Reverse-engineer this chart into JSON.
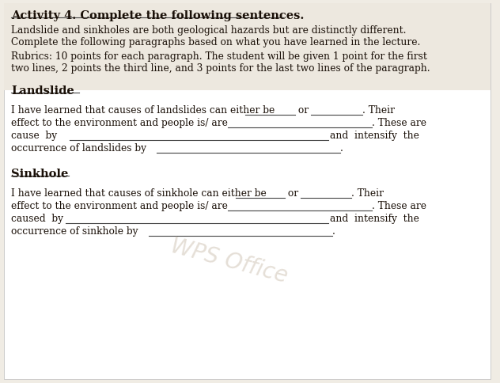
{
  "bg_color": "#f0ece4",
  "content_bg": "#ffffff",
  "text_color": "#1a1008",
  "line_color": "#444444",
  "title": "Activity 4. Complete the following sentences.",
  "intro_line1": "Landslide and sinkholes are both geological hazards but are distinctly different.",
  "intro_line2": "Complete the following paragraphs based on what you have learned in the lecture.",
  "rubrics_line1": "Rubrics: 10 points for each paragraph. The student will be given 1 point for the first",
  "rubrics_line2": "two lines, 2 points the third line, and 3 points for the last two lines of the paragraph.",
  "section1_header": "Landslide",
  "s1_l1_pre": "I have learned that causes of landslides can either be ",
  "s1_l1_or": " or ",
  "s1_l1_post": ". Their",
  "s1_l2_pre": "effect to the environment and people is/ are ",
  "s1_l2_post": ". These are",
  "s1_l3_pre": "cause  by ",
  "s1_l3_post": "and  intensify  the",
  "s1_l4_pre": "occurrence of landslides by ",
  "s1_l4_post": ".",
  "section2_header": "Sinkhole",
  "s2_l1_pre": "I have learned that causes of sinkhole can either be ",
  "s2_l1_or": " or ",
  "s2_l1_post": ". Their",
  "s2_l2_pre": "effect to the environment and people is/ are ",
  "s2_l2_post": ". These are",
  "s2_l3_pre": "caused  by ",
  "s2_l3_post": "and  intensify  the",
  "s2_l4_pre": "occurrence of sinkhole by ",
  "s2_l4_post": ".",
  "watermark": "WPS Office",
  "watermark_color": "#ccc0b0",
  "fs_title": 10.5,
  "fs_body": 8.8,
  "fs_header": 10.5,
  "fs_watermark": 20
}
